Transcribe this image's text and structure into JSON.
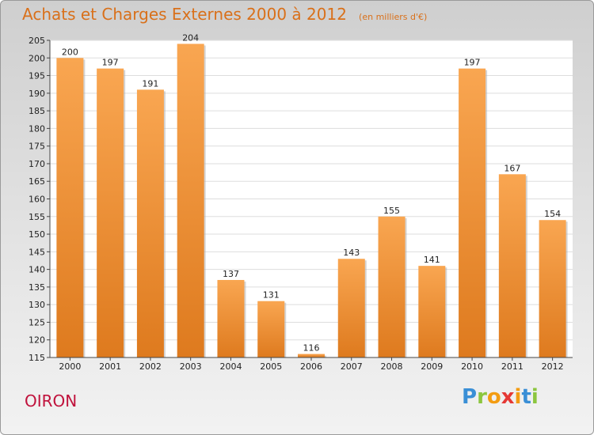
{
  "header": {
    "title": "Achats et Charges Externes 2000 à 2012",
    "subtitle": "(en milliers d'€)"
  },
  "footer": {
    "town": "OIRON",
    "logo_letters": [
      "P",
      "r",
      "o",
      "x",
      "i",
      "t",
      "i"
    ],
    "logo_colors": [
      "#3a8fd6",
      "#8cc63f",
      "#f39c12",
      "#e53935",
      "#f39c12",
      "#3a8fd6",
      "#8cc63f"
    ]
  },
  "colors": {
    "bar_top": "#f9a651",
    "bar_bottom": "#de7a1e",
    "accent": "#d9701a"
  },
  "chart_data": {
    "type": "bar",
    "title": "Achats et Charges Externes 2000 à 2012",
    "subtitle": "(en milliers d'€)",
    "categories": [
      "2000",
      "2001",
      "2002",
      "2003",
      "2004",
      "2005",
      "2006",
      "2007",
      "2008",
      "2009",
      "2010",
      "2011",
      "2012"
    ],
    "values": [
      200,
      197,
      191,
      204,
      137,
      131,
      116,
      143,
      155,
      141,
      197,
      167,
      154
    ],
    "ylim": [
      115,
      205
    ],
    "yticks": [
      115,
      120,
      125,
      130,
      135,
      140,
      145,
      150,
      155,
      160,
      165,
      170,
      175,
      180,
      185,
      190,
      195,
      200,
      205
    ],
    "grid": true,
    "legend": "none"
  }
}
